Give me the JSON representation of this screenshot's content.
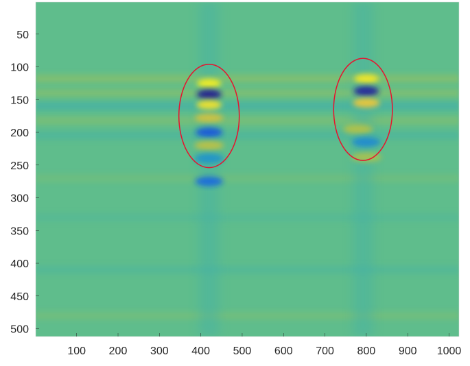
{
  "chart_data": {
    "type": "heatmap",
    "title": "",
    "xlabel": "",
    "ylabel": "",
    "colormap": "parula",
    "background_color": "#5fbd8c",
    "xlim": [
      1,
      1024
    ],
    "ylim": [
      1,
      512
    ],
    "y_reversed": true,
    "x_ticks": [
      100,
      200,
      300,
      400,
      500,
      600,
      700,
      800,
      900,
      1000
    ],
    "x_tick_labels": [
      "100",
      "200",
      "300",
      "400",
      "500",
      "600",
      "700",
      "800",
      "900",
      "1000"
    ],
    "y_ticks": [
      50,
      100,
      150,
      200,
      250,
      300,
      350,
      400,
      450,
      500
    ],
    "y_tick_labels": [
      "50",
      "100",
      "150",
      "200",
      "250",
      "300",
      "350",
      "400",
      "450",
      "500"
    ],
    "grid": false,
    "horizontal_bands": [
      {
        "y": 118,
        "intensity": 0.35
      },
      {
        "y": 140,
        "intensity": 0.3
      },
      {
        "y": 160,
        "intensity": -0.3
      },
      {
        "y": 182,
        "intensity": 0.25
      },
      {
        "y": 205,
        "intensity": -0.2
      },
      {
        "y": 270,
        "intensity": 0.15
      },
      {
        "y": 330,
        "intensity": -0.12
      },
      {
        "y": 410,
        "intensity": -0.15
      },
      {
        "y": 480,
        "intensity": 0.18
      }
    ],
    "features": [
      {
        "x": 420,
        "y": 125,
        "intensity": 1.0
      },
      {
        "x": 420,
        "y": 142,
        "intensity": -1.0
      },
      {
        "x": 420,
        "y": 158,
        "intensity": 0.9
      },
      {
        "x": 420,
        "y": 178,
        "intensity": 0.5
      },
      {
        "x": 420,
        "y": 200,
        "intensity": -0.7
      },
      {
        "x": 420,
        "y": 220,
        "intensity": 0.4
      },
      {
        "x": 420,
        "y": 240,
        "intensity": -0.4
      },
      {
        "x": 420,
        "y": 275,
        "intensity": -0.6
      },
      {
        "x": 800,
        "y": 118,
        "intensity": 0.95
      },
      {
        "x": 800,
        "y": 137,
        "intensity": -0.95
      },
      {
        "x": 800,
        "y": 155,
        "intensity": 0.7
      },
      {
        "x": 780,
        "y": 195,
        "intensity": 0.35
      },
      {
        "x": 800,
        "y": 215,
        "intensity": -0.45
      },
      {
        "x": 800,
        "y": 238,
        "intensity": 0.3
      }
    ],
    "annotations": [
      {
        "type": "ellipse",
        "cx": 420,
        "cy": 175,
        "rx": 73,
        "ry": 79,
        "color": "#e8112d"
      },
      {
        "type": "ellipse",
        "cx": 792,
        "cy": 165,
        "rx": 71,
        "ry": 78,
        "color": "#e8112d"
      }
    ]
  }
}
